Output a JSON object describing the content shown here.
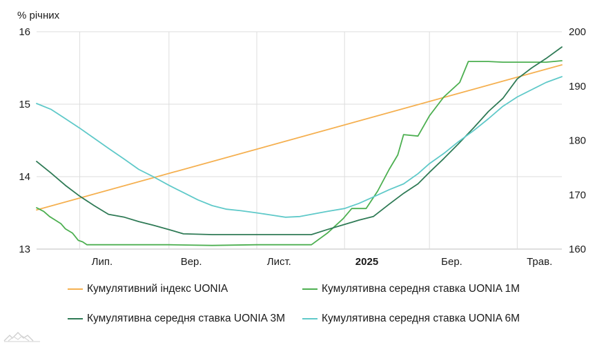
{
  "chart_data": {
    "type": "line",
    "y_unit_label": "% річних",
    "y_left": {
      "min": 13,
      "max": 16,
      "ticks": [
        "13",
        "14",
        "15",
        "16"
      ]
    },
    "y_right": {
      "min": 160,
      "max": 200,
      "ticks": [
        "160",
        "170",
        "180",
        "190",
        "200"
      ]
    },
    "x_range": [
      "2024-06-01",
      "2025-06-01"
    ],
    "x_ticks": [
      {
        "label": "Лип.",
        "date": "2024-07-01",
        "bold": false
      },
      {
        "label": "Вер.",
        "date": "2024-09-01",
        "bold": false
      },
      {
        "label": "Лист.",
        "date": "2024-11-01",
        "bold": false
      },
      {
        "label": "2025",
        "date": "2025-01-01",
        "bold": true
      },
      {
        "label": "Бер.",
        "date": "2025-03-01",
        "bold": false
      },
      {
        "label": "Трав.",
        "date": "2025-05-01",
        "bold": false
      }
    ],
    "grid": true,
    "legend_position": "bottom",
    "series": [
      {
        "name": "Кумулятивний індекс UONIA",
        "color": "#f5b050",
        "axis": "right",
        "x": [
          "2024-06-01",
          "2025-06-01"
        ],
        "values": [
          167.2,
          193.9
        ]
      },
      {
        "name": "Кумулятивна середня ставка UONIA 1M",
        "color": "#4caf50",
        "axis": "left",
        "x": [
          "2024-06-01",
          "2024-06-06",
          "2024-06-10",
          "2024-06-14",
          "2024-06-18",
          "2024-06-21",
          "2024-06-26",
          "2024-06-30",
          "2024-07-03",
          "2024-07-06",
          "2024-07-11",
          "2024-08-01",
          "2024-09-01",
          "2024-10-01",
          "2024-11-01",
          "2024-12-01",
          "2024-12-09",
          "2024-12-20",
          "2024-12-31",
          "2025-01-06",
          "2025-01-11",
          "2025-01-16",
          "2025-01-24",
          "2025-02-01",
          "2025-02-07",
          "2025-02-11",
          "2025-02-21",
          "2025-03-01",
          "2025-03-11",
          "2025-03-22",
          "2025-03-28",
          "2025-04-01",
          "2025-04-11",
          "2025-04-21",
          "2025-05-01",
          "2025-05-11",
          "2025-05-21",
          "2025-06-01"
        ],
        "values": [
          13.57,
          13.52,
          13.45,
          13.4,
          13.35,
          13.28,
          13.22,
          13.12,
          13.1,
          13.06,
          13.06,
          13.06,
          13.06,
          13.05,
          13.06,
          13.06,
          13.06,
          13.22,
          13.42,
          13.56,
          13.56,
          13.56,
          13.8,
          14.1,
          14.3,
          14.58,
          14.56,
          14.84,
          15.1,
          15.3,
          15.59,
          15.59,
          15.59,
          15.58,
          15.58,
          15.58,
          15.58,
          15.6
        ]
      },
      {
        "name": "Кумулятивна середня ставка UONIA 3M",
        "color": "#2e7a55",
        "axis": "left",
        "x": [
          "2024-06-01",
          "2024-06-11",
          "2024-06-21",
          "2024-07-01",
          "2024-07-11",
          "2024-07-21",
          "2024-08-01",
          "2024-08-11",
          "2024-08-21",
          "2024-09-01",
          "2024-09-11",
          "2024-10-01",
          "2024-11-01",
          "2024-12-01",
          "2024-12-09",
          "2024-12-20",
          "2025-01-01",
          "2025-01-11",
          "2025-01-21",
          "2025-02-01",
          "2025-02-11",
          "2025-02-21",
          "2025-03-01",
          "2025-03-11",
          "2025-03-21",
          "2025-04-01",
          "2025-04-11",
          "2025-04-21",
          "2025-05-01",
          "2025-05-11",
          "2025-05-21",
          "2025-06-01"
        ],
        "values": [
          14.21,
          14.05,
          13.88,
          13.73,
          13.6,
          13.48,
          13.44,
          13.38,
          13.33,
          13.27,
          13.21,
          13.2,
          13.2,
          13.2,
          13.2,
          13.27,
          13.34,
          13.4,
          13.45,
          13.62,
          13.77,
          13.9,
          14.06,
          14.25,
          14.45,
          14.68,
          14.9,
          15.08,
          15.35,
          15.5,
          15.63,
          15.79
        ]
      },
      {
        "name": "Кумулятивна середня ставка UONIA 6M",
        "color": "#5fc9c9",
        "axis": "left",
        "x": [
          "2024-06-01",
          "2024-06-11",
          "2024-06-21",
          "2024-07-01",
          "2024-07-11",
          "2024-07-21",
          "2024-08-01",
          "2024-08-11",
          "2024-08-21",
          "2024-09-01",
          "2024-09-11",
          "2024-09-21",
          "2024-10-01",
          "2024-10-11",
          "2024-10-21",
          "2024-11-01",
          "2024-11-11",
          "2024-11-21",
          "2024-12-01",
          "2024-12-09",
          "2024-12-20",
          "2025-01-01",
          "2025-01-11",
          "2025-01-21",
          "2025-02-01",
          "2025-02-11",
          "2025-02-21",
          "2025-03-01",
          "2025-03-11",
          "2025-03-21",
          "2025-04-01",
          "2025-04-11",
          "2025-04-21",
          "2025-05-01",
          "2025-05-11",
          "2025-05-21",
          "2025-06-01"
        ],
        "values": [
          15.01,
          14.93,
          14.8,
          14.67,
          14.53,
          14.39,
          14.24,
          14.1,
          14.0,
          13.88,
          13.78,
          13.68,
          13.6,
          13.55,
          13.53,
          13.5,
          13.47,
          13.44,
          13.45,
          13.48,
          13.52,
          13.56,
          13.63,
          13.72,
          13.82,
          13.9,
          14.04,
          14.18,
          14.32,
          14.48,
          14.64,
          14.8,
          14.97,
          15.1,
          15.2,
          15.3,
          15.38
        ]
      }
    ]
  }
}
